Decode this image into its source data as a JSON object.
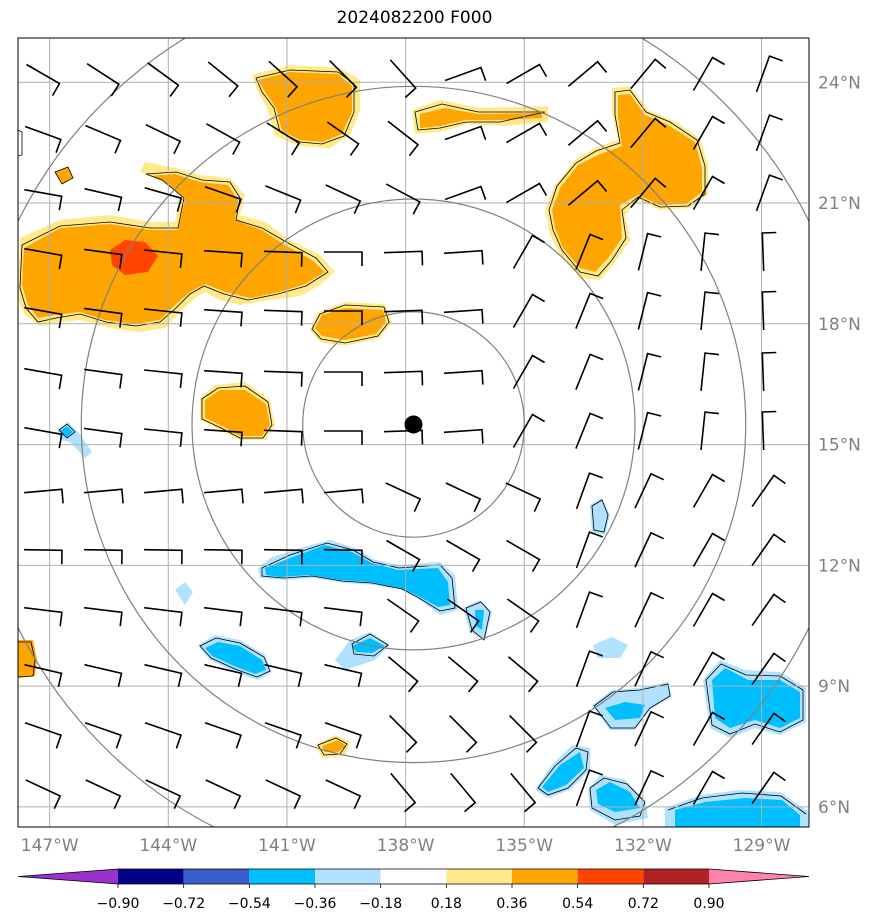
{
  "title": "2024082200 F000",
  "map": {
    "lon_range": [
      -147.8,
      -127.8
    ],
    "lat_range": [
      5.5,
      25.1
    ],
    "lon_ticks": [
      {
        "value": -147,
        "label": "147°W"
      },
      {
        "value": -144,
        "label": "144°W"
      },
      {
        "value": -141,
        "label": "141°W"
      },
      {
        "value": -138,
        "label": "138°W"
      },
      {
        "value": -135,
        "label": "135°W"
      },
      {
        "value": -132,
        "label": "132°W"
      },
      {
        "value": -129,
        "label": "129°W"
      }
    ],
    "lat_ticks": [
      {
        "value": 6,
        "label": "6°N"
      },
      {
        "value": 9,
        "label": "9°N"
      },
      {
        "value": 12,
        "label": "12°N"
      },
      {
        "value": 15,
        "label": "15°N"
      },
      {
        "value": 18,
        "label": "18°N"
      },
      {
        "value": 21,
        "label": "21°N"
      },
      {
        "value": 24,
        "label": "24°N"
      }
    ],
    "center": {
      "lon": -137.8,
      "lat": 15.5
    },
    "range_rings_deg": [
      2.8,
      5.6,
      8.4,
      11.2
    ],
    "grid_color": "#b0b0b0",
    "ring_color": "#808080"
  },
  "colorbar": {
    "levels": [
      "−0.90",
      "−0.72",
      "−0.54",
      "−0.36",
      "−0.18",
      "0.18",
      "0.36",
      "0.54",
      "0.72",
      "0.90"
    ],
    "colors": [
      "#9932cc",
      "#00008b",
      "#3a5fcd",
      "#00bfff",
      "#b0e2ff",
      "#ffffff",
      "#ffe98a",
      "#ffa500",
      "#ff4500",
      "#b22222",
      "#ff82ab"
    ]
  },
  "fill_colors": {
    "pos_light": "#ffe98a",
    "pos_mid": "#ffa500",
    "pos_high": "#ff4500",
    "neg_light": "#b0e2ff",
    "neg_mid": "#00bfff"
  }
}
